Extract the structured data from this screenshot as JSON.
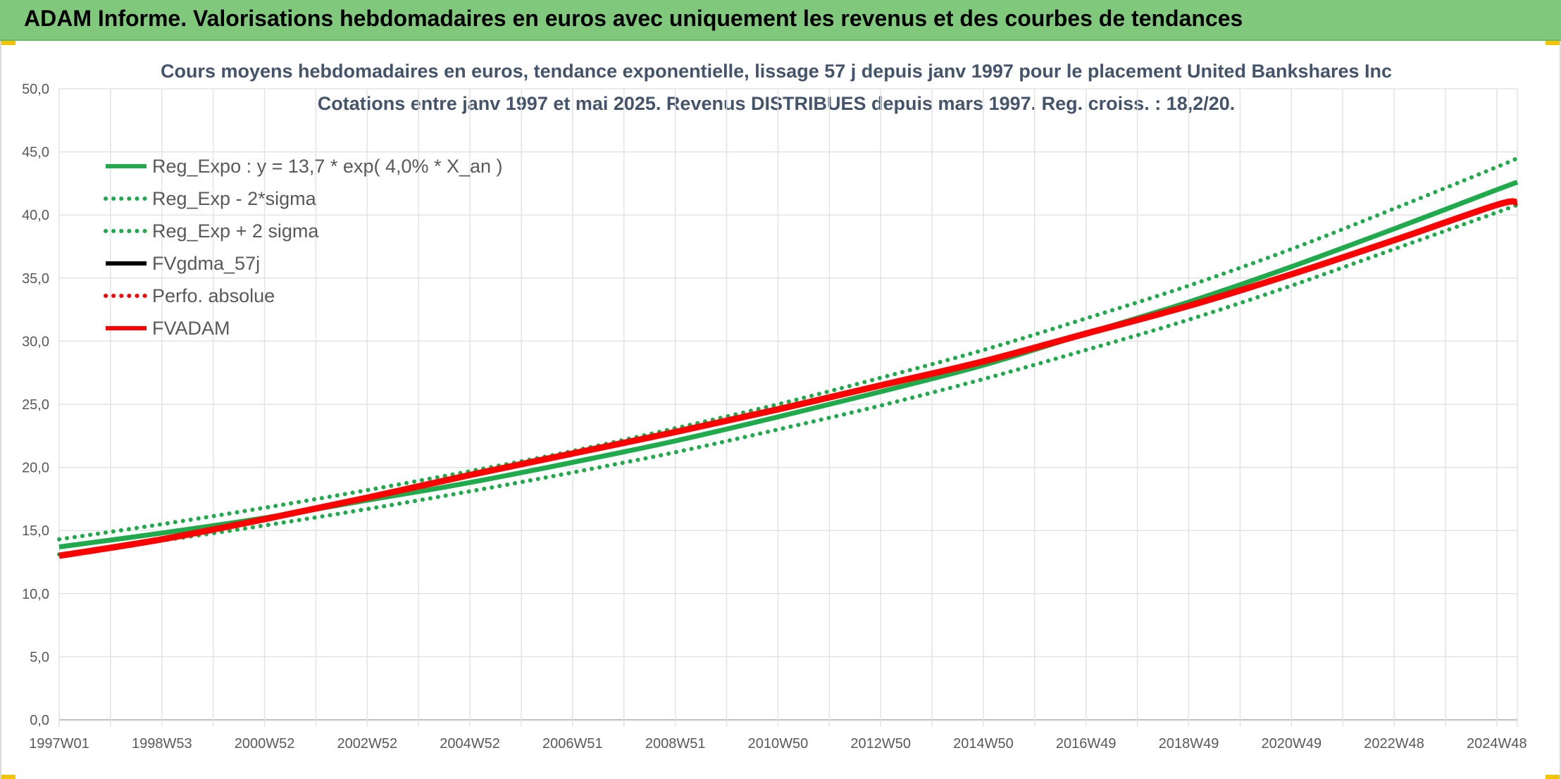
{
  "header": {
    "title": "ADAM Informe. Valorisations hebdomadaires en euros avec uniquement les revenus et des courbes de tendances",
    "background": "#80c97c"
  },
  "chart_data": {
    "type": "line",
    "title_line1": "Cours moyens hebdomadaires en euros, tendance exponentielle, lissage 57 j depuis janv 1997 pour le placement United Bankshares Inc",
    "title_line2": "Cotations entre janv 1997 et mai 2025. Revenus DISTRIBUES depuis mars 1997. Reg. croiss. : 18,2/20.",
    "xlabel": "",
    "ylabel": "",
    "ylim": [
      0,
      50
    ],
    "xlim": [
      1997.0,
      2025.4
    ],
    "y_ticks": [
      "0,0",
      "5,0",
      "10,0",
      "15,0",
      "20,0",
      "25,0",
      "30,0",
      "35,0",
      "40,0",
      "45,0",
      "50,0"
    ],
    "x_ticks": [
      {
        "label": "1997W01",
        "year": 1997.0
      },
      {
        "label": "1998W53",
        "year": 1999.0
      },
      {
        "label": "2000W52",
        "year": 2001.0
      },
      {
        "label": "2002W52",
        "year": 2003.0
      },
      {
        "label": "2004W52",
        "year": 2005.0
      },
      {
        "label": "2006W51",
        "year": 2007.0
      },
      {
        "label": "2008W51",
        "year": 2009.0
      },
      {
        "label": "2010W50",
        "year": 2011.0
      },
      {
        "label": "2012W50",
        "year": 2013.0
      },
      {
        "label": "2014W50",
        "year": 2015.0
      },
      {
        "label": "2016W49",
        "year": 2017.0
      },
      {
        "label": "2018W49",
        "year": 2019.0
      },
      {
        "label": "2020W49",
        "year": 2021.0
      },
      {
        "label": "2022W48",
        "year": 2023.0
      },
      {
        "label": "2024W48",
        "year": 2025.0
      }
    ],
    "grid": true,
    "legend_position": "top-left",
    "series": [
      {
        "name": "Reg_Expo : y = 13,7 * exp( 4,0% *  X_an )",
        "color": "#1faa4c",
        "style": "solid",
        "x": [
          1997.0,
          1999.0,
          2001.0,
          2003.0,
          2005.0,
          2007.0,
          2009.0,
          2011.0,
          2013.0,
          2015.0,
          2017.0,
          2019.0,
          2021.0,
          2023.0,
          2025.0,
          2025.4
        ],
        "y": [
          13.7,
          14.8,
          16.0,
          17.4,
          18.8,
          20.4,
          22.1,
          24.0,
          26.0,
          28.1,
          30.6,
          33.1,
          35.9,
          38.9,
          42.0,
          42.6
        ]
      },
      {
        "name": "Reg_Exp - 2*sigma",
        "color": "#1faa4c",
        "style": "dotted",
        "x": [
          1997.0,
          1999.0,
          2001.0,
          2003.0,
          2005.0,
          2007.0,
          2009.0,
          2011.0,
          2013.0,
          2015.0,
          2017.0,
          2019.0,
          2021.0,
          2023.0,
          2025.0,
          2025.4
        ],
        "y": [
          13.1,
          14.2,
          15.4,
          16.7,
          18.1,
          19.6,
          21.2,
          23.0,
          24.9,
          27.0,
          29.3,
          31.7,
          34.4,
          37.3,
          40.2,
          40.8
        ]
      },
      {
        "name": "Reg_Exp + 2 sigma",
        "color": "#1faa4c",
        "style": "dotted",
        "x": [
          1997.0,
          1999.0,
          2001.0,
          2003.0,
          2005.0,
          2007.0,
          2009.0,
          2011.0,
          2013.0,
          2015.0,
          2017.0,
          2019.0,
          2021.0,
          2023.0,
          2025.0,
          2025.4
        ],
        "y": [
          14.3,
          15.5,
          16.8,
          18.2,
          19.7,
          21.3,
          23.1,
          25.0,
          27.1,
          29.3,
          31.8,
          34.4,
          37.3,
          40.5,
          43.8,
          44.5
        ]
      },
      {
        "name": "FVgdma_57j",
        "color": "#000000",
        "style": "solid",
        "x": [],
        "y": []
      },
      {
        "name": "Perfo. absolue",
        "color": "#ff0000",
        "style": "dotted",
        "x": [],
        "y": []
      },
      {
        "name": "FVADAM",
        "color": "#ff0000",
        "style": "solid",
        "x": [
          1997.0,
          1999.0,
          2001.0,
          2003.0,
          2005.0,
          2007.0,
          2009.0,
          2011.0,
          2013.0,
          2015.0,
          2017.0,
          2019.0,
          2021.0,
          2023.0,
          2025.0,
          2025.4
        ],
        "y": [
          13.0,
          14.3,
          15.9,
          17.6,
          19.4,
          21.1,
          22.8,
          24.6,
          26.5,
          28.4,
          30.6,
          32.8,
          35.3,
          38.0,
          40.8,
          41.0
        ]
      }
    ]
  }
}
